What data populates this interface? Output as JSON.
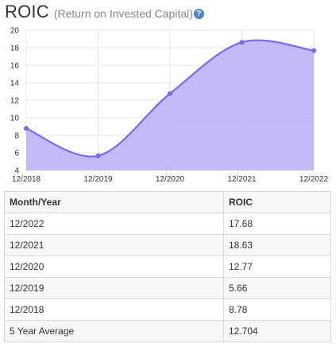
{
  "header": {
    "title": "ROIC",
    "subtitle": "(Return on Invested Capital)",
    "help_icon": "?"
  },
  "chart_data": {
    "type": "area",
    "x": [
      "12/2018",
      "12/2019",
      "12/2020",
      "12/2021",
      "12/2022"
    ],
    "series": [
      {
        "values": [
          8.78,
          5.66,
          12.77,
          18.63,
          17.68
        ]
      }
    ],
    "ylim": [
      4,
      20
    ],
    "yticks": [
      4,
      6,
      8,
      10,
      12,
      14,
      16,
      18,
      20
    ],
    "grid": true,
    "colors": {
      "line": "#7b68ee",
      "fill": "#b9aef6"
    }
  },
  "table": {
    "headers": [
      "Month/Year",
      "ROIC"
    ],
    "rows": [
      [
        "12/2022",
        "17.68"
      ],
      [
        "12/2021",
        "18.63"
      ],
      [
        "12/2020",
        "12.77"
      ],
      [
        "12/2019",
        "5.66"
      ],
      [
        "12/2018",
        "8.78"
      ],
      [
        "5 Year Average",
        "12.704"
      ]
    ]
  }
}
